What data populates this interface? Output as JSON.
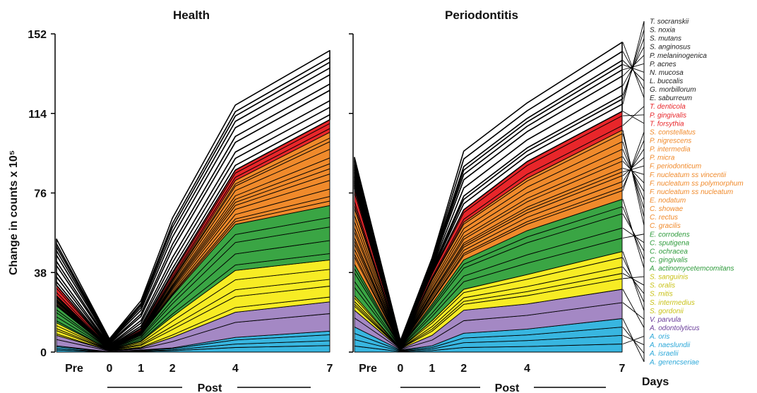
{
  "chart_data": {
    "type": "area",
    "ylabel": "Change in counts x 10⁵",
    "y_ticks": [
      0,
      38,
      76,
      114,
      152
    ],
    "ylim": [
      0,
      152
    ],
    "x": [
      "Pre",
      "0",
      "1",
      "2",
      "4",
      "7"
    ],
    "x_days": [
      -1.2,
      0,
      1,
      2,
      4,
      7
    ],
    "xgroup_label": "Post",
    "xunit_label": "Days",
    "legend_placement": "right",
    "group_colors": {
      "white": "#ffffff",
      "red": "#e8262a",
      "orange": "#f08a2b",
      "green": "#3aa544",
      "yellow": "#f7ec24",
      "purple": "#a488c4",
      "blue": "#38b6e0"
    },
    "group_label_colors": {
      "white": "#222222",
      "red": "#e8262a",
      "orange": "#f08a2b",
      "green": "#2d9a3a",
      "yellow": "#c9c218",
      "purple": "#6a3d9a",
      "blue": "#2aa7d8"
    },
    "species": [
      {
        "name": "T. socranskii",
        "group": "white"
      },
      {
        "name": "S. noxia",
        "group": "white"
      },
      {
        "name": "S. mutans",
        "group": "white"
      },
      {
        "name": "S. anginosus",
        "group": "white"
      },
      {
        "name": "P. melaninogenica",
        "group": "white"
      },
      {
        "name": "P. acnes",
        "group": "white"
      },
      {
        "name": "N. mucosa",
        "group": "white"
      },
      {
        "name": "L. buccalis",
        "group": "white"
      },
      {
        "name": "G. morbillorum",
        "group": "white"
      },
      {
        "name": "E. saburreum",
        "group": "white"
      },
      {
        "name": "T. denticola",
        "group": "red"
      },
      {
        "name": "P. gingivalis",
        "group": "red"
      },
      {
        "name": "T. forsythia",
        "group": "red"
      },
      {
        "name": "S. constellatus",
        "group": "orange"
      },
      {
        "name": "P. nigrescens",
        "group": "orange"
      },
      {
        "name": "P. intermedia",
        "group": "orange"
      },
      {
        "name": "P. micra",
        "group": "orange"
      },
      {
        "name": "F. periodonticum",
        "group": "orange"
      },
      {
        "name": "F. nucleatum ss vincentii",
        "group": "orange"
      },
      {
        "name": "F. nucleatum ss polymorphum",
        "group": "orange"
      },
      {
        "name": "F. nucleatum ss nucleatum",
        "group": "orange"
      },
      {
        "name": "E. nodatum",
        "group": "orange"
      },
      {
        "name": "C. showae",
        "group": "orange"
      },
      {
        "name": "C. rectus",
        "group": "orange"
      },
      {
        "name": "C. gracilis",
        "group": "orange"
      },
      {
        "name": "E. corrodens",
        "group": "green"
      },
      {
        "name": "C. sputigena",
        "group": "green"
      },
      {
        "name": "C. ochracea",
        "group": "green"
      },
      {
        "name": "C. gingivalis",
        "group": "green"
      },
      {
        "name": "A. actinomycetemcomitans",
        "group": "green"
      },
      {
        "name": "S. sanguinis",
        "group": "yellow"
      },
      {
        "name": "S. oralis",
        "group": "yellow"
      },
      {
        "name": "S. mitis",
        "group": "yellow"
      },
      {
        "name": "S. intermedius",
        "group": "yellow"
      },
      {
        "name": "S. gordonii",
        "group": "yellow"
      },
      {
        "name": "V. parvula",
        "group": "purple"
      },
      {
        "name": "A. odontolyticus",
        "group": "purple"
      },
      {
        "name": "A. oris",
        "group": "blue"
      },
      {
        "name": "A. naeslundii",
        "group": "blue"
      },
      {
        "name": "A. israelii",
        "group": "blue"
      },
      {
        "name": "A. gerencseriae",
        "group": "blue"
      }
    ],
    "panels": [
      {
        "title": "Health",
        "group_totals": {
          "white": [
            22,
            4,
            13,
            26,
            31,
            33
          ],
          "red": [
            5,
            0.3,
            1.5,
            3,
            5,
            6
          ],
          "orange": [
            5,
            0.3,
            2,
            8,
            21,
            35
          ],
          "green": [
            8,
            0.5,
            3,
            10,
            22,
            26
          ],
          "yellow": [
            6,
            0.5,
            3,
            10,
            20,
            20
          ],
          "purple": [
            5,
            0.5,
            1,
            5,
            12,
            14
          ],
          "blue": [
            3,
            0.2,
            1,
            2,
            7,
            10
          ]
        }
      },
      {
        "title": "Periodontitis",
        "group_totals": {
          "white": [
            15,
            1.5,
            7,
            28,
            28,
            33
          ],
          "red": [
            8,
            0.3,
            3,
            6,
            8,
            9
          ],
          "orange": [
            28,
            1,
            12,
            18,
            25,
            33
          ],
          "green": [
            15,
            0.7,
            8,
            14,
            21,
            25
          ],
          "yellow": [
            7,
            0.5,
            7,
            10,
            14,
            18
          ],
          "purple": [
            8,
            0.5,
            5,
            11,
            12,
            14
          ],
          "blue": [
            12,
            1,
            3,
            9,
            11,
            16
          ]
        }
      }
    ]
  }
}
